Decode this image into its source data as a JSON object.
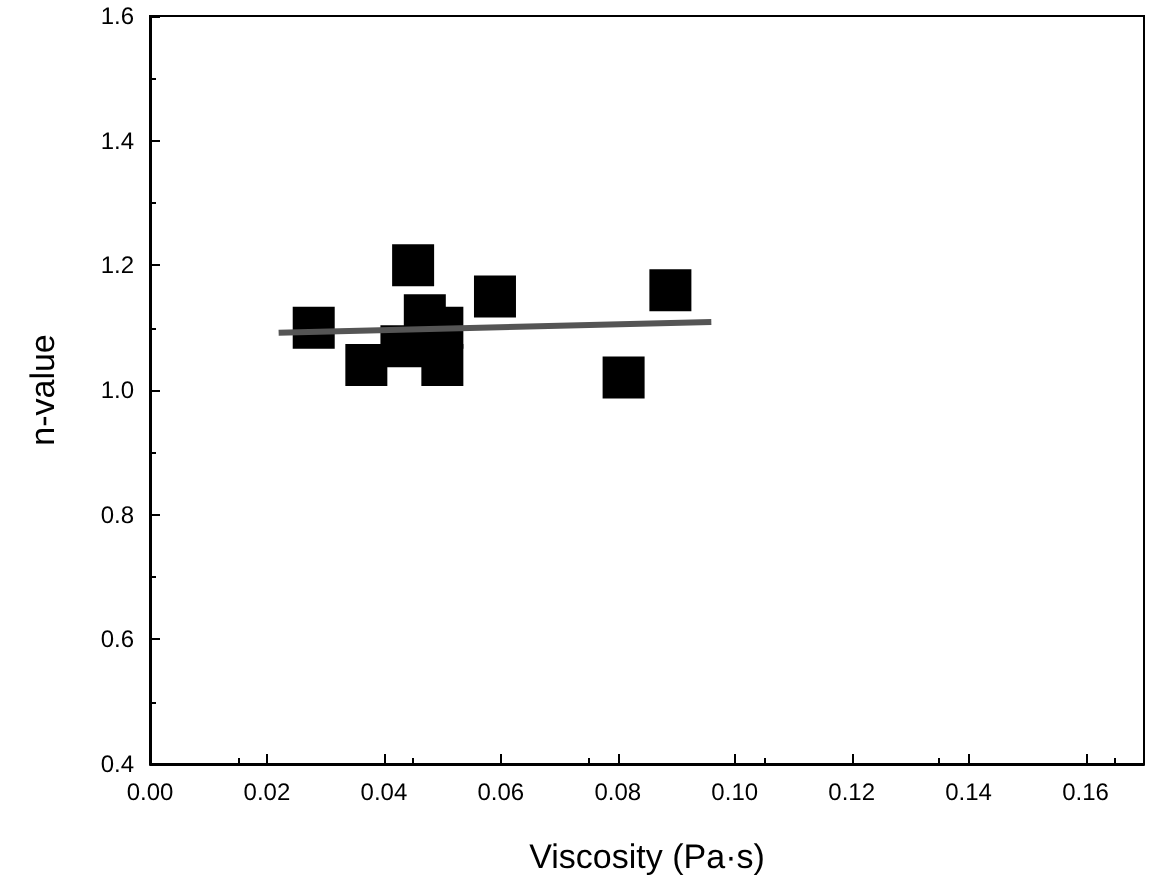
{
  "chart_data": {
    "type": "scatter",
    "xlabel": "Viscosity (Pa·s)",
    "ylabel": "n-value",
    "marker": "square",
    "grid": false,
    "xlim": [
      0,
      0.17
    ],
    "xticks": [
      {
        "value": 0,
        "label": "0.00"
      },
      {
        "value": 0.02,
        "label": "0.02"
      },
      {
        "value": 0.04,
        "label": "0.04"
      },
      {
        "value": 0.06,
        "label": "0.06"
      },
      {
        "value": 0.08,
        "label": "0.08"
      },
      {
        "value": 0.1,
        "label": "0.10"
      },
      {
        "value": 0.12,
        "label": "0.12"
      },
      {
        "value": 0.14,
        "label": "0.14"
      },
      {
        "value": 0.16,
        "label": "0.16"
      }
    ],
    "ylim": [
      0.4,
      1.6
    ],
    "yticks": [
      0.4,
      0.6,
      0.8,
      {
        "value": 1,
        "label": "1.0"
      },
      1.2,
      1.4,
      1.6
    ],
    "series": [
      {
        "color": "#000000",
        "x": [
          0.028,
          0.037,
          0.045,
          0.043,
          0.047,
          0.05,
          0.05,
          0.059,
          0.081,
          0.089
        ],
        "values": [
          1.1,
          1.04,
          1.2,
          1.07,
          1.12,
          1.1,
          1.04,
          1.15,
          1.02,
          1.16
        ]
      },
      {
        "type": "line",
        "color": "#555555",
        "marker": "none",
        "x": [
          0.022,
          0.096
        ],
        "values": [
          1.092,
          1.109
        ]
      }
    ]
  }
}
